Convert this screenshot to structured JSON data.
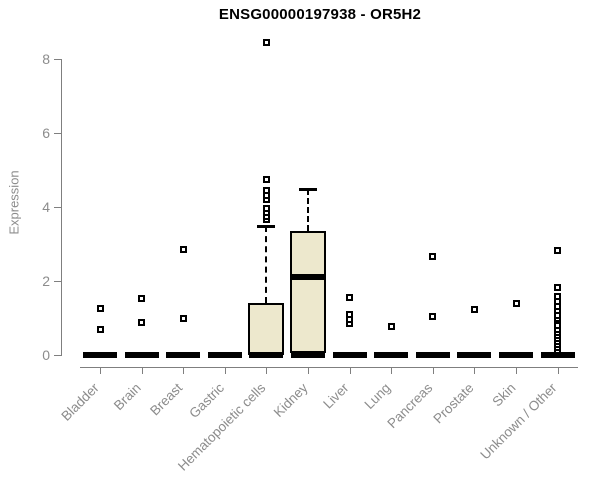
{
  "chart_data": {
    "type": "boxplot",
    "title": "ENSG00000197938 - OR5H2",
    "xlabel": "",
    "ylabel": "Expression",
    "yticks": [
      0,
      2,
      4,
      6,
      8
    ],
    "ylim": [
      0,
      8.6
    ],
    "grid": false,
    "legend": "none",
    "colors": {
      "box_fill": "#EDE8CD",
      "box_stroke": "#000000",
      "axis_line": "#7f7f7f",
      "axis_text": "#8c8c8c",
      "title_text": "#000000"
    },
    "categories": [
      "Bladder",
      "Brain",
      "Breast",
      "Gastric",
      "Hematopoietic cells",
      "Kidney",
      "Liver",
      "Lung",
      "Pancreas",
      "Prostate",
      "Skin",
      "Unknown / Other"
    ],
    "series": [
      {
        "category": "Bladder",
        "q1": 0,
        "median": 0,
        "q3": 0,
        "whisker_low": 0,
        "whisker_high": 0,
        "outliers": [
          0.68,
          1.27
        ]
      },
      {
        "category": "Brain",
        "q1": 0,
        "median": 0,
        "q3": 0,
        "whisker_low": 0,
        "whisker_high": 0,
        "outliers": [
          0.88,
          1.52
        ]
      },
      {
        "category": "Breast",
        "q1": 0,
        "median": 0,
        "q3": 0,
        "whisker_low": 0,
        "whisker_high": 0,
        "outliers": [
          1.0,
          2.84
        ]
      },
      {
        "category": "Gastric",
        "q1": 0,
        "median": 0,
        "q3": 0,
        "whisker_low": 0,
        "whisker_high": 0,
        "outliers": []
      },
      {
        "category": "Hematopoietic cells",
        "q1": 0,
        "median": 0,
        "q3": 1.4,
        "whisker_low": 0,
        "whisker_high": 3.5,
        "outliers": [
          3.65,
          3.75,
          3.85,
          3.95,
          4.2,
          4.3,
          4.45,
          4.75,
          8.45
        ]
      },
      {
        "category": "Kidney",
        "q1": 0.05,
        "median": 2.1,
        "q3": 3.35,
        "whisker_low": 0,
        "whisker_high": 4.5,
        "outliers": []
      },
      {
        "category": "Liver",
        "q1": 0,
        "median": 0,
        "q3": 0,
        "whisker_low": 0,
        "whisker_high": 0,
        "outliers": [
          0.85,
          0.95,
          1.1,
          1.55
        ]
      },
      {
        "category": "Lung",
        "q1": 0,
        "median": 0,
        "q3": 0,
        "whisker_low": 0,
        "whisker_high": 0,
        "outliers": [
          0.76
        ]
      },
      {
        "category": "Pancreas",
        "q1": 0,
        "median": 0,
        "q3": 0,
        "whisker_low": 0,
        "whisker_high": 0,
        "outliers": [
          1.05,
          2.67
        ]
      },
      {
        "category": "Prostate",
        "q1": 0,
        "median": 0,
        "q3": 0,
        "whisker_low": 0,
        "whisker_high": 0,
        "outliers": [
          1.22
        ]
      },
      {
        "category": "Skin",
        "q1": 0,
        "median": 0,
        "q3": 0,
        "whisker_low": 0,
        "whisker_high": 0,
        "outliers": [
          1.4
        ]
      },
      {
        "category": "Unknown / Other",
        "q1": 0,
        "median": 0,
        "q3": 0,
        "whisker_low": 0,
        "whisker_high": 0,
        "outliers": [
          0.12,
          0.2,
          0.28,
          0.36,
          0.44,
          0.52,
          0.6,
          0.68,
          0.8,
          1.0,
          1.08,
          1.2,
          1.32,
          1.45,
          1.58,
          1.83,
          2.82
        ]
      }
    ]
  }
}
